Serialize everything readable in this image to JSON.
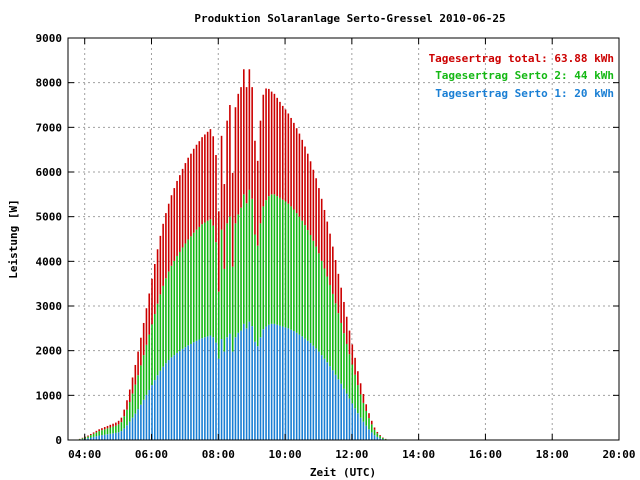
{
  "chart_data": {
    "type": "bar",
    "title": "Produktion Solaranlage Serto-Gressel 2010-06-25",
    "xlabel": "Zeit (UTC)",
    "ylabel": "Leistung [W]",
    "xlim": [
      3.5,
      20.0
    ],
    "ylim": [
      0,
      9000
    ],
    "grid": true,
    "x_tick_labels": [
      "04:00",
      "06:00",
      "08:00",
      "10:00",
      "12:00",
      "14:00",
      "16:00",
      "18:00",
      "20:00"
    ],
    "x_tick_values": [
      4,
      6,
      8,
      10,
      12,
      14,
      16,
      18,
      20
    ],
    "y_tick_values": [
      0,
      1000,
      2000,
      3000,
      4000,
      5000,
      6000,
      7000,
      8000,
      9000
    ],
    "legend_position": "top-right",
    "stacked": true,
    "x_start": 3.85,
    "x_step": 0.0833,
    "series": [
      {
        "name": "Tagesertrag Serto 1: 20 kWh",
        "color": "#1a7fd4",
        "values": [
          10,
          20,
          30,
          40,
          55,
          70,
          85,
          100,
          110,
          120,
          130,
          140,
          150,
          160,
          175,
          200,
          260,
          330,
          410,
          500,
          590,
          690,
          790,
          900,
          1010,
          1120,
          1230,
          1340,
          1450,
          1550,
          1640,
          1720,
          1790,
          1850,
          1900,
          1950,
          1990,
          2040,
          2080,
          2120,
          2150,
          2190,
          2220,
          2250,
          2280,
          2300,
          2320,
          2340,
          2300,
          2180,
          1820,
          2260,
          1980,
          2300,
          2380,
          1980,
          2300,
          2400,
          2450,
          2600,
          2500,
          2650,
          2550,
          2200,
          2100,
          2300,
          2480,
          2540,
          2580,
          2600,
          2600,
          2580,
          2560,
          2540,
          2520,
          2500,
          2470,
          2440,
          2400,
          2360,
          2320,
          2270,
          2220,
          2170,
          2110,
          2050,
          1980,
          1900,
          1820,
          1740,
          1650,
          1560,
          1460,
          1360,
          1260,
          1150,
          1040,
          930,
          820,
          710,
          600,
          500,
          410,
          320,
          240,
          170,
          110,
          70,
          40,
          20,
          10
        ]
      },
      {
        "name": "Tagesertrag Serto 2: 44 kWh",
        "color": "#14b814",
        "values": [
          10,
          20,
          30,
          40,
          55,
          70,
          85,
          100,
          110,
          120,
          130,
          140,
          150,
          160,
          175,
          200,
          270,
          350,
          440,
          540,
          650,
          760,
          880,
          1000,
          1120,
          1240,
          1360,
          1480,
          1600,
          1710,
          1810,
          1900,
          1980,
          2050,
          2110,
          2170,
          2220,
          2270,
          2320,
          2370,
          2410,
          2450,
          2490,
          2520,
          2550,
          2570,
          2590,
          2600,
          2500,
          2250,
          1500,
          2450,
          1850,
          2550,
          2620,
          1900,
          2550,
          2650,
          2750,
          2900,
          2800,
          2950,
          2850,
          2400,
          2250,
          2550,
          2750,
          2830,
          2880,
          2900,
          2900,
          2880,
          2860,
          2840,
          2820,
          2790,
          2760,
          2720,
          2680,
          2640,
          2590,
          2540,
          2480,
          2420,
          2350,
          2280,
          2200,
          2110,
          2020,
          1920,
          1820,
          1710,
          1600,
          1480,
          1360,
          1240,
          1110,
          990,
          870,
          750,
          630,
          520,
          420,
          330,
          250,
          180,
          120,
          80,
          50,
          25,
          10
        ]
      },
      {
        "name": "Tagesertrag total: 63.88 kWh",
        "color": "#cc0000",
        "values": [
          5,
          10,
          15,
          20,
          25,
          30,
          35,
          40,
          45,
          50,
          55,
          60,
          65,
          70,
          80,
          100,
          150,
          210,
          280,
          360,
          440,
          530,
          620,
          720,
          820,
          920,
          1020,
          1120,
          1220,
          1310,
          1390,
          1460,
          1520,
          1580,
          1630,
          1680,
          1720,
          1760,
          1800,
          1830,
          1850,
          1880,
          1900,
          1920,
          1950,
          1970,
          1990,
          2020,
          2000,
          1950,
          1800,
          2100,
          1900,
          2300,
          2500,
          2100,
          2600,
          2700,
          2700,
          2800,
          2600,
          2700,
          2500,
          2100,
          1900,
          2300,
          2500,
          2500,
          2400,
          2300,
          2250,
          2200,
          2150,
          2100,
          2060,
          2020,
          1980,
          1940,
          1900,
          1860,
          1810,
          1760,
          1710,
          1650,
          1590,
          1530,
          1460,
          1390,
          1310,
          1230,
          1150,
          1060,
          970,
          880,
          790,
          700,
          610,
          530,
          450,
          380,
          310,
          250,
          200,
          150,
          110,
          80,
          50,
          30,
          20,
          10,
          5
        ]
      }
    ]
  }
}
